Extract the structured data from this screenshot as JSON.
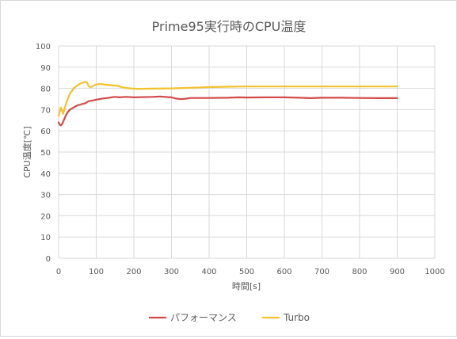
{
  "chart_data": {
    "type": "line",
    "title": "Prime95実行時のCPU温度",
    "xlabel": "時間[s]",
    "ylabel": "CPU温度[℃]",
    "xlim": [
      0,
      1000
    ],
    "ylim": [
      0,
      100
    ],
    "x_ticks": [
      "0",
      "100",
      "200",
      "300",
      "400",
      "500",
      "600",
      "700",
      "800",
      "900",
      "1000"
    ],
    "y_ticks": [
      "0",
      "10",
      "20",
      "30",
      "40",
      "50",
      "60",
      "70",
      "80",
      "90",
      "100"
    ],
    "grid": true,
    "legend_position": "bottom",
    "series": [
      {
        "name": "パフォーマンス",
        "color": "#d44a4a",
        "points": [
          [
            0,
            64
          ],
          [
            3,
            63
          ],
          [
            6,
            62.5
          ],
          [
            10,
            63.5
          ],
          [
            15,
            65.5
          ],
          [
            20,
            67.5
          ],
          [
            25,
            69
          ],
          [
            30,
            70
          ],
          [
            40,
            71
          ],
          [
            50,
            72
          ],
          [
            60,
            72.5
          ],
          [
            70,
            73
          ],
          [
            80,
            74
          ],
          [
            90,
            74.3
          ],
          [
            100,
            74.7
          ],
          [
            110,
            75
          ],
          [
            120,
            75.3
          ],
          [
            130,
            75.5
          ],
          [
            140,
            75.8
          ],
          [
            150,
            76
          ],
          [
            160,
            75.8
          ],
          [
            180,
            76
          ],
          [
            200,
            75.8
          ],
          [
            250,
            76
          ],
          [
            270,
            76.2
          ],
          [
            290,
            75.9
          ],
          [
            300,
            75.8
          ],
          [
            310,
            75.3
          ],
          [
            320,
            75
          ],
          [
            330,
            75
          ],
          [
            340,
            75.2
          ],
          [
            350,
            75.5
          ],
          [
            400,
            75.5
          ],
          [
            450,
            75.6
          ],
          [
            480,
            75.8
          ],
          [
            500,
            75.7
          ],
          [
            550,
            75.8
          ],
          [
            600,
            75.8
          ],
          [
            640,
            75.6
          ],
          [
            670,
            75.4
          ],
          [
            700,
            75.6
          ],
          [
            750,
            75.6
          ],
          [
            800,
            75.5
          ],
          [
            850,
            75.4
          ],
          [
            900,
            75.4
          ]
        ]
      },
      {
        "name": "Turbo",
        "color": "#f2c12e",
        "points": [
          [
            0,
            67
          ],
          [
            3,
            69
          ],
          [
            6,
            71
          ],
          [
            9,
            69.5
          ],
          [
            12,
            68
          ],
          [
            15,
            70
          ],
          [
            20,
            73
          ],
          [
            25,
            75.5
          ],
          [
            30,
            77.5
          ],
          [
            40,
            80
          ],
          [
            50,
            81.5
          ],
          [
            60,
            82.5
          ],
          [
            70,
            83
          ],
          [
            75,
            83
          ],
          [
            80,
            81
          ],
          [
            85,
            80.5
          ],
          [
            95,
            81.5
          ],
          [
            105,
            82
          ],
          [
            115,
            82
          ],
          [
            125,
            81.7
          ],
          [
            140,
            81.5
          ],
          [
            155,
            81.3
          ],
          [
            170,
            80.5
          ],
          [
            190,
            80
          ],
          [
            210,
            79.8
          ],
          [
            250,
            79.9
          ],
          [
            300,
            80
          ],
          [
            350,
            80.3
          ],
          [
            400,
            80.6
          ],
          [
            450,
            80.8
          ],
          [
            500,
            80.9
          ],
          [
            550,
            80.9
          ],
          [
            600,
            80.9
          ],
          [
            700,
            80.9
          ],
          [
            800,
            80.9
          ],
          [
            900,
            80.9
          ]
        ]
      }
    ]
  }
}
